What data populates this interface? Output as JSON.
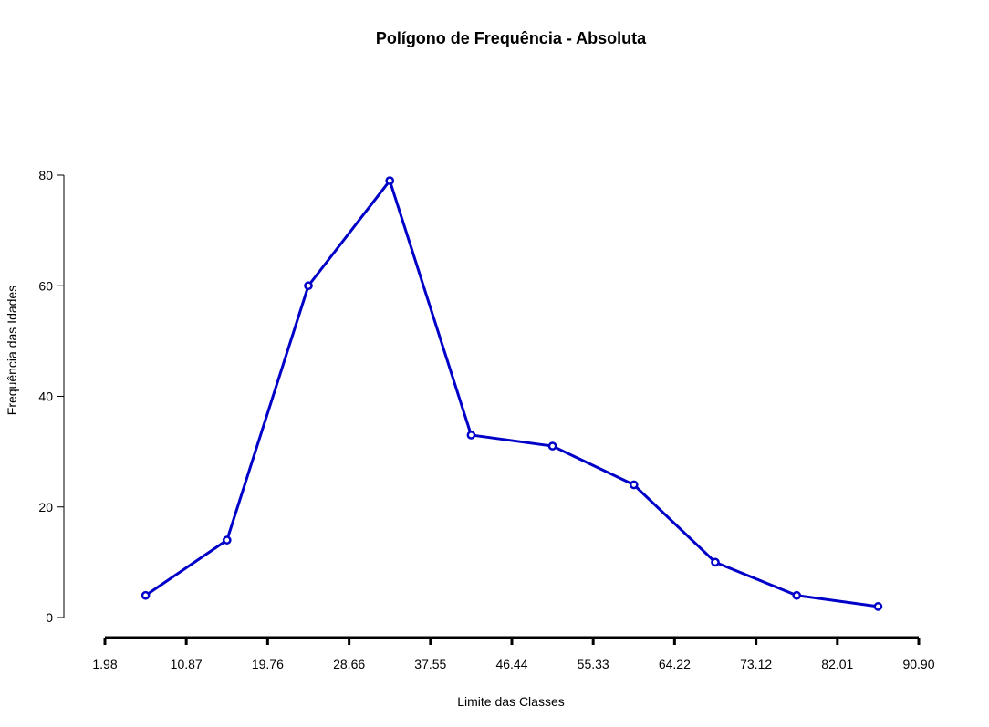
{
  "chart_data": {
    "type": "line",
    "title": "Polígono de Frequência - Absoluta",
    "xlabel": "Limite das Classes",
    "ylabel": "Frequência das Idades",
    "x_tick_labels": [
      "1.98",
      "10.87",
      "19.76",
      "28.66",
      "37.55",
      "46.44",
      "55.33",
      "64.22",
      "73.12",
      "82.01",
      "90.90"
    ],
    "x_tick_values": [
      1.98,
      10.87,
      19.76,
      28.66,
      37.55,
      46.44,
      55.33,
      64.22,
      73.12,
      82.01,
      90.9
    ],
    "y_ticks": [
      0,
      20,
      40,
      60,
      80
    ],
    "series": [
      {
        "x": [
          6.425,
          15.315,
          24.21,
          33.105,
          41.995,
          50.885,
          59.775,
          68.67,
          77.565,
          86.455
        ],
        "values": [
          4,
          14,
          60,
          79,
          33,
          31,
          24,
          10,
          4,
          2
        ]
      }
    ],
    "xlim": [
      1.98,
      90.9
    ],
    "ylim": [
      0,
      80
    ],
    "grid": false,
    "line_color": "#0000c8"
  }
}
